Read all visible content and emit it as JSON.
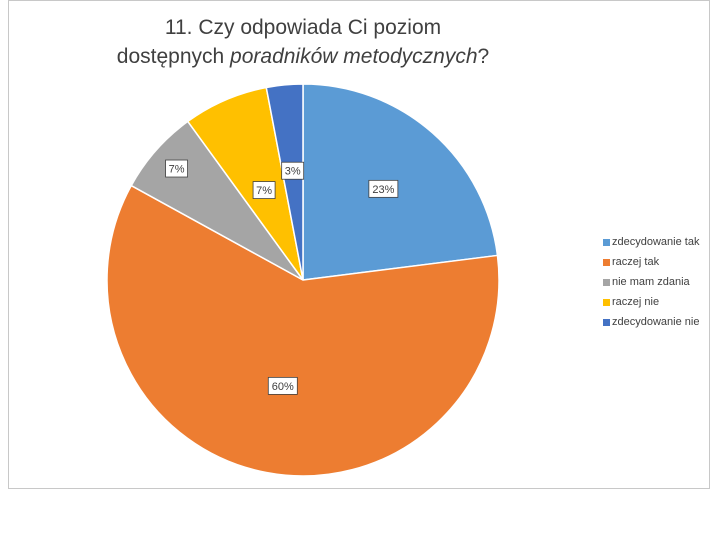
{
  "chart_data": {
    "type": "pie",
    "title_lines": [
      [
        {
          "text": "11. Czy odpowiada Ci poziom",
          "italic": false
        }
      ],
      [
        {
          "text": "dostępnych ",
          "italic": false
        },
        {
          "text": "poradników metodycznych",
          "italic": true
        },
        {
          "text": "?",
          "italic": false
        }
      ]
    ],
    "categories": [
      "zdecydowanie tak",
      "raczej tak",
      "nie mam zdania",
      "raczej nie",
      "zdecydowanie nie"
    ],
    "values": [
      23,
      60,
      7,
      7,
      3
    ],
    "data_labels": [
      "23%",
      "60%",
      "7%",
      "7%",
      "3%"
    ],
    "colors": [
      "#5b9bd5",
      "#ed7d31",
      "#a5a5a5",
      "#ffc000",
      "#4472c4"
    ],
    "start_angle_deg": 0,
    "direction": "clockwise",
    "legend_position": "right"
  }
}
